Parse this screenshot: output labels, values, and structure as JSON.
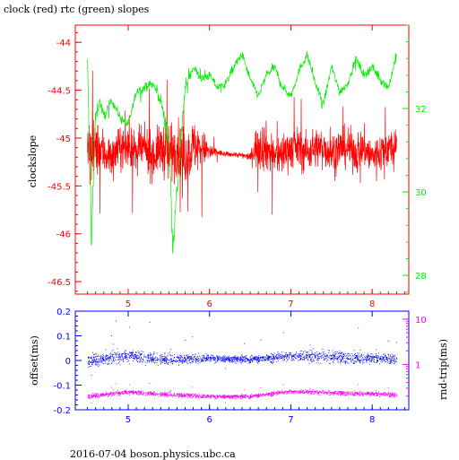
{
  "title": "clock (red) rtc (green) slopes",
  "footer": "2016-07-04 boson.physics.ubc.ca",
  "colors": {
    "clock": "#ff0000",
    "rtc": "#00ee00",
    "offset": "#0000ff",
    "rndtrip": "#ff00ff",
    "top_frame": "#ff0000",
    "bottom_frame": "#0000ff"
  },
  "chart_data": [
    {
      "type": "line",
      "ylabel": "clockslope",
      "xlim": [
        4.35,
        8.45
      ],
      "ylim": [
        -46.63,
        -43.82
      ],
      "xticks": [
        5,
        6,
        7,
        8
      ],
      "yticks": [
        -44,
        -44.5,
        -45,
        -45.5,
        -46,
        -46.5
      ],
      "y2lim": [
        27.55,
        34.0
      ],
      "y2ticks": [
        28,
        30,
        32
      ],
      "series": [
        {
          "color": "#ff0000",
          "axis": "left",
          "x": [
            4.5,
            4.55,
            4.6,
            4.7,
            4.8,
            4.9,
            5.0,
            5.1,
            5.2,
            5.3,
            5.4,
            5.5,
            5.6,
            5.7,
            5.8,
            5.9,
            6.0,
            6.1,
            6.2,
            6.3,
            6.4,
            6.5,
            6.6,
            6.7,
            6.8,
            6.9,
            7.0,
            7.1,
            7.2,
            7.3,
            7.4,
            7.5,
            7.6,
            7.7,
            7.8,
            7.9,
            8.0,
            8.1,
            8.2,
            8.3
          ],
          "y": [
            -45.1,
            -45.2,
            -45.1,
            -45.15,
            -45.2,
            -45.1,
            -45.1,
            -45.15,
            -45.1,
            -45.2,
            -45.1,
            -45.15,
            -45.1,
            -45.2,
            -45.1,
            -45.1,
            -45.15,
            -45.15,
            -45.17,
            -45.17,
            -45.18,
            -45.2,
            -45.05,
            -45.1,
            -45.2,
            -45.15,
            -45.1,
            -45.1,
            -45.15,
            -45.1,
            -45.1,
            -45.15,
            -45.1,
            -45.1,
            -45.15,
            -45.1,
            -45.2,
            -45.15,
            -45.1,
            -45.15
          ],
          "noise": [
            0.55,
            0.5,
            0.4,
            0.35,
            0.3,
            0.3,
            0.3,
            0.3,
            0.3,
            0.35,
            0.35,
            0.5,
            0.4,
            0.4,
            0.4,
            0.3,
            0.15,
            0.05,
            0.04,
            0.04,
            0.04,
            0.05,
            0.4,
            0.35,
            0.3,
            0.3,
            0.3,
            0.3,
            0.3,
            0.3,
            0.3,
            0.3,
            0.3,
            0.3,
            0.3,
            0.3,
            0.3,
            0.3,
            0.3,
            0.3
          ]
        },
        {
          "color": "#00ee00",
          "axis": "right",
          "x": [
            4.5,
            4.55,
            4.6,
            4.65,
            4.7,
            4.8,
            4.9,
            5.0,
            5.1,
            5.2,
            5.3,
            5.4,
            5.5,
            5.55,
            5.6,
            5.7,
            5.8,
            5.9,
            6.0,
            6.1,
            6.2,
            6.3,
            6.4,
            6.5,
            6.6,
            6.7,
            6.8,
            6.9,
            7.0,
            7.1,
            7.2,
            7.3,
            7.4,
            7.5,
            7.6,
            7.7,
            7.8,
            7.9,
            8.0,
            8.1,
            8.2,
            8.3
          ],
          "y": [
            33.0,
            29.0,
            31.8,
            32.2,
            31.8,
            32.2,
            31.8,
            31.6,
            32.4,
            32.5,
            32.6,
            32.2,
            31.2,
            28.8,
            30.0,
            32.5,
            33.0,
            32.7,
            32.8,
            32.5,
            32.6,
            33.0,
            33.3,
            32.7,
            32.3,
            32.8,
            33.0,
            32.5,
            32.3,
            32.9,
            33.3,
            32.6,
            32.1,
            33.0,
            32.4,
            32.6,
            33.2,
            32.8,
            33.0,
            32.7,
            32.5,
            33.3
          ],
          "noise": [
            0.5,
            0.6,
            0.3,
            0.2,
            0.2,
            0.15,
            0.15,
            0.15,
            0.15,
            0.15,
            0.15,
            0.2,
            0.4,
            0.6,
            0.4,
            0.2,
            0.15,
            0.15,
            0.15,
            0.15,
            0.15,
            0.15,
            0.15,
            0.15,
            0.15,
            0.15,
            0.15,
            0.15,
            0.15,
            0.15,
            0.15,
            0.15,
            0.15,
            0.15,
            0.15,
            0.15,
            0.15,
            0.15,
            0.15,
            0.15,
            0.15,
            0.15
          ]
        }
      ]
    },
    {
      "type": "scatter",
      "ylabel": "offset(ms)",
      "y2label": "rnd-trip(ms)",
      "xlim": [
        4.35,
        8.45
      ],
      "ylim": [
        -0.2,
        0.2
      ],
      "xticks": [
        5,
        6,
        7,
        8
      ],
      "yticks": [
        0.2,
        0.1,
        0,
        -0.1,
        -0.2
      ],
      "y2scale": "log",
      "y2lim": [
        0.1,
        15
      ],
      "y2ticks": [
        1,
        10
      ],
      "series": [
        {
          "color": "#0000ff",
          "axis": "left",
          "x": [
            4.5,
            5.0,
            5.5,
            6.0,
            6.5,
            7.0,
            7.5,
            8.0,
            8.3
          ],
          "y": [
            0.0,
            0.02,
            0.005,
            0.01,
            0.005,
            0.02,
            0.015,
            0.01,
            0.01
          ],
          "spread": [
            0.03,
            0.03,
            0.025,
            0.015,
            0.015,
            0.025,
            0.03,
            0.025,
            0.025
          ]
        },
        {
          "color": "#ff00ff",
          "axis": "right",
          "x": [
            4.5,
            5.0,
            5.5,
            6.0,
            6.5,
            7.0,
            7.5,
            8.0,
            8.3
          ],
          "y": [
            0.2,
            0.25,
            0.22,
            0.2,
            0.2,
            0.26,
            0.24,
            0.23,
            0.22
          ],
          "spread": [
            0.03,
            0.03,
            0.03,
            0.02,
            0.02,
            0.03,
            0.03,
            0.03,
            0.03
          ]
        }
      ]
    }
  ]
}
